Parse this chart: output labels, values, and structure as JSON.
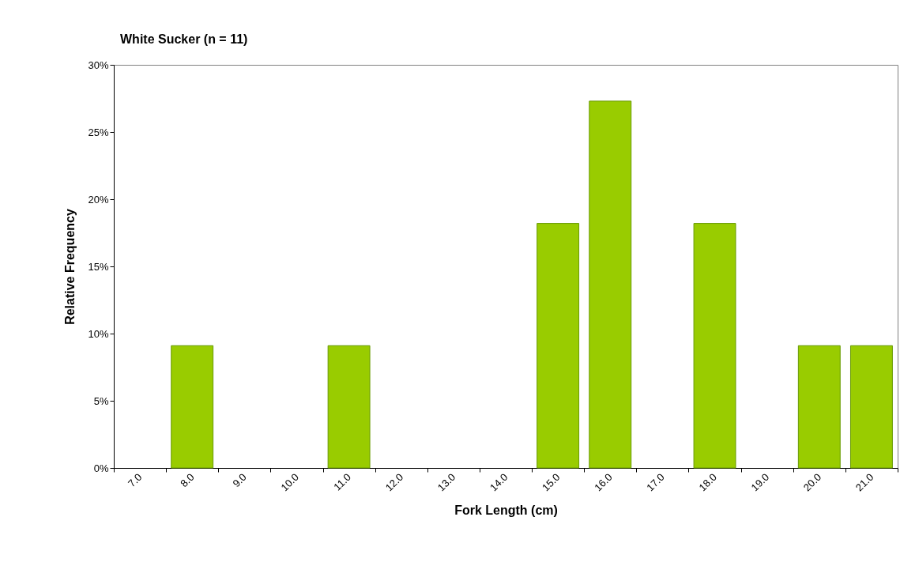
{
  "chart_data": {
    "type": "bar",
    "title": "White Sucker (n = 11)",
    "xlabel": "Fork Length (cm)",
    "ylabel": "Relative Frequency",
    "categories": [
      "7.0",
      "8.0",
      "9.0",
      "10.0",
      "11.0",
      "12.0",
      "13.0",
      "14.0",
      "15.0",
      "16.0",
      "17.0",
      "18.0",
      "19.0",
      "20.0",
      "21.0"
    ],
    "values": [
      0,
      9.1,
      0,
      0,
      9.1,
      0,
      0,
      0,
      18.2,
      27.3,
      0,
      18.2,
      0,
      9.1,
      9.1
    ],
    "color": "#99cc00",
    "ylim": [
      0,
      30
    ],
    "yticks": [
      {
        "value": 0,
        "label": "0%"
      },
      {
        "value": 5,
        "label": "5%"
      },
      {
        "value": 10,
        "label": "10%"
      },
      {
        "value": 15,
        "label": "15%"
      },
      {
        "value": 20,
        "label": "20%"
      },
      {
        "value": 25,
        "label": "25%"
      },
      {
        "value": 30,
        "label": "30%"
      }
    ],
    "grid": false
  }
}
